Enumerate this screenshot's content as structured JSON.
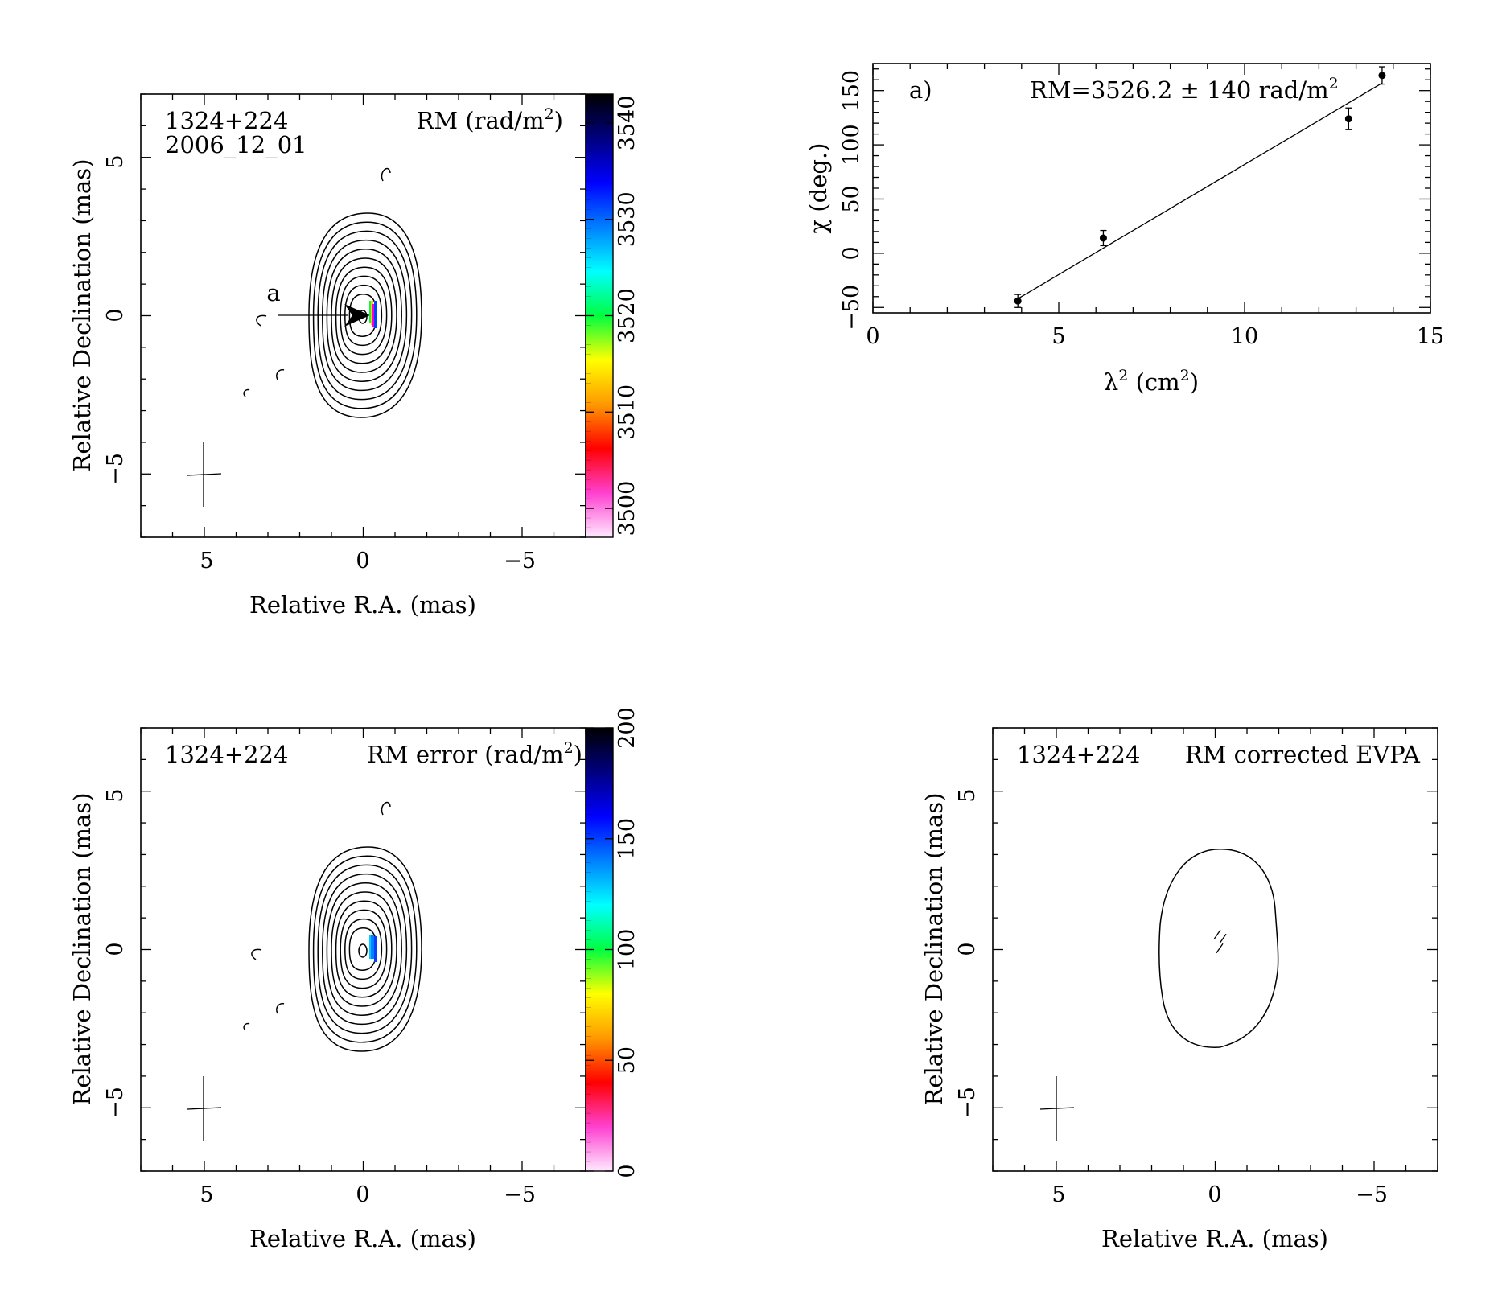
{
  "panels": {
    "rm_map": {
      "source": "1324+224",
      "epoch": "2006_12_01",
      "quantity_label": "RM (rad/m",
      "quantity_sup": "2",
      "quantity_close": ")",
      "xlabel": "Relative R.A. (mas)",
      "ylabel": "Relative Declination (mas)",
      "xticks": [
        "5",
        "0",
        "−5"
      ],
      "yticks": [
        "5",
        "0",
        "−5"
      ],
      "region_label": "a",
      "colorbar_ticks": [
        "3500",
        "3510",
        "3520",
        "3530",
        "3540"
      ]
    },
    "rm_fit": {
      "panel_label": "a)",
      "rm_text": "RM=3526.2 ± 140 rad/m",
      "rm_sup": "2",
      "ylabel": "χ (deg.)",
      "xlabel_main": "λ",
      "xlabel_sup1": "2",
      "xlabel_mid": " (cm",
      "xlabel_sup2": "2",
      "xlabel_end": ")",
      "xticks": [
        "0",
        "5",
        "10",
        "15"
      ],
      "yticks": [
        "−50",
        "0",
        "50",
        "100",
        "150"
      ]
    },
    "rm_error_map": {
      "source": "1324+224",
      "quantity_label": "RM error (rad/m",
      "quantity_sup": "2",
      "quantity_close": ")",
      "xlabel": "Relative R.A. (mas)",
      "ylabel": "Relative Declination (mas)",
      "xticks": [
        "5",
        "0",
        "−5"
      ],
      "yticks": [
        "5",
        "0",
        "−5"
      ],
      "colorbar_ticks": [
        "0",
        "50",
        "100",
        "150",
        "200"
      ]
    },
    "evpa_map": {
      "source": "1324+224",
      "quantity_label": "RM corrected EVPA",
      "xlabel": "Relative R.A. (mas)",
      "ylabel": "Relative Declination (mas)",
      "xticks": [
        "5",
        "0",
        "−5"
      ],
      "yticks": [
        "5",
        "0",
        "−5"
      ]
    }
  },
  "chart_data": [
    {
      "type": "heatmap",
      "name": "RM map",
      "xrange_mas": [
        7,
        -7
      ],
      "yrange_mas": [
        -7,
        7
      ],
      "colorbar_range": [
        3497,
        3543
      ],
      "contour_levels": 11,
      "colormap": [
        "#ffe8ff",
        "#ff40d0",
        "#ff0000",
        "#ff9900",
        "#ffff00",
        "#00ff40",
        "#00ffff",
        "#0080ff",
        "#0000ff",
        "#000080",
        "#000000"
      ]
    },
    {
      "type": "scatter",
      "name": "RM fit",
      "x": [
        3.9,
        6.2,
        12.8,
        13.7
      ],
      "y": [
        -44,
        14,
        124,
        164
      ],
      "yerr": [
        6,
        7,
        10,
        8
      ],
      "fit_line": {
        "x": [
          3.9,
          13.7
        ],
        "y": [
          -42,
          157
        ]
      },
      "xlim": [
        0,
        15
      ],
      "ylim": [
        -55,
        175
      ]
    },
    {
      "type": "heatmap",
      "name": "RM error map",
      "xrange_mas": [
        7,
        -7
      ],
      "yrange_mas": [
        -7,
        7
      ],
      "colorbar_range": [
        0,
        200
      ],
      "contour_levels": 11
    },
    {
      "type": "line",
      "name": "RM corrected EVPA map",
      "xrange_mas": [
        7,
        -7
      ],
      "yrange_mas": [
        -7,
        7
      ],
      "contour_levels": 1,
      "evpa_angle_deg": 35
    }
  ]
}
